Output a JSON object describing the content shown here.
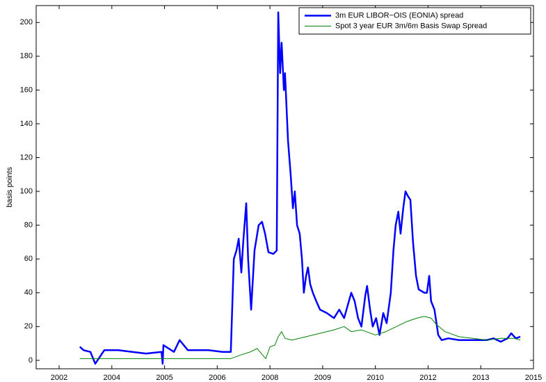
{
  "chart_data": {
    "type": "line",
    "ylabel": "basis points",
    "xlim": [
      2001.79,
      2015.0
    ],
    "xticks": [
      {
        "value": 2002.4,
        "label": "2002"
      },
      {
        "value": 2003.8,
        "label": "2004"
      },
      {
        "value": 2005.2,
        "label": "2005"
      },
      {
        "value": 2006.6,
        "label": "2006"
      },
      {
        "value": 2008.0,
        "label": "2008"
      },
      {
        "value": 2009.4,
        "label": "2009"
      },
      {
        "value": 2010.8,
        "label": "2010"
      },
      {
        "value": 2012.2,
        "label": "2012"
      },
      {
        "value": 2013.6,
        "label": "2013"
      },
      {
        "value": 2015.0,
        "label": "2015"
      }
    ],
    "ylim": [
      -5,
      210
    ],
    "yticks": [
      0,
      20,
      40,
      60,
      80,
      100,
      120,
      140,
      160,
      180,
      200
    ],
    "legend": "upper right",
    "series": [
      {
        "name": "3m EUR LIBOR−OIS (EONIA) spread",
        "color": "#0000ff",
        "line_width": 2.5,
        "x": [
          2002.95,
          2003.05,
          2003.23,
          2003.36,
          2003.6,
          2003.97,
          2004.34,
          2004.71,
          2005.12,
          2005.15,
          2005.17,
          2005.45,
          2005.6,
          2005.82,
          2006.37,
          2006.74,
          2006.96,
          2007.04,
          2007.11,
          2007.17,
          2007.24,
          2007.29,
          2007.37,
          2007.42,
          2007.5,
          2007.59,
          2007.7,
          2007.79,
          2007.87,
          2007.96,
          2008.09,
          2008.18,
          2008.22,
          2008.27,
          2008.31,
          2008.37,
          2008.4,
          2008.48,
          2008.55,
          2008.61,
          2008.66,
          2008.72,
          2008.79,
          2008.85,
          2008.9,
          2008.96,
          2009.01,
          2009.07,
          2009.14,
          2009.23,
          2009.33,
          2009.51,
          2009.7,
          2009.84,
          2009.97,
          2010.16,
          2010.25,
          2010.34,
          2010.43,
          2010.53,
          2010.58,
          2010.66,
          2010.73,
          2010.82,
          2010.91,
          2011.01,
          2011.1,
          2011.21,
          2011.28,
          2011.34,
          2011.41,
          2011.47,
          2011.54,
          2011.6,
          2011.67,
          2011.73,
          2011.8,
          2011.88,
          2011.95,
          2012.1,
          2012.17,
          2012.23,
          2012.28,
          2012.37,
          2012.47,
          2012.56,
          2012.74,
          2013.02,
          2013.39,
          2013.76,
          2013.94,
          2014.13,
          2014.31,
          2014.41,
          2014.53,
          2014.65
        ],
        "values": [
          8,
          6,
          5,
          -2,
          6,
          6,
          5,
          4,
          5,
          -2,
          9,
          5,
          12,
          6,
          6,
          5,
          5,
          60,
          65,
          72,
          52,
          70,
          93,
          60,
          30,
          65,
          80,
          82,
          75,
          64,
          63,
          65,
          206,
          170,
          188,
          160,
          170,
          130,
          110,
          90,
          100,
          80,
          75,
          60,
          40,
          50,
          55,
          45,
          40,
          35,
          30,
          28,
          25,
          30,
          25,
          40,
          35,
          25,
          20,
          38,
          44,
          30,
          20,
          25,
          15,
          28,
          22,
          40,
          65,
          80,
          88,
          75,
          90,
          100,
          97,
          95,
          70,
          50,
          42,
          40,
          40,
          50,
          35,
          30,
          15,
          12,
          13,
          12,
          12,
          12,
          13,
          11,
          13,
          16,
          13,
          14
        ]
      },
      {
        "name": "Spot 3 year EUR 3m/6m Basis Swap Spread",
        "color": "#008000",
        "line_width": 1,
        "x": [
          2002.95,
          2003.42,
          2004.52,
          2005.08,
          2005.63,
          2006.96,
          2007.2,
          2007.48,
          2007.66,
          2007.81,
          2007.89,
          2008.0,
          2008.13,
          2008.22,
          2008.31,
          2008.4,
          2008.59,
          2008.96,
          2009.33,
          2009.7,
          2009.97,
          2010.16,
          2010.43,
          2010.8,
          2011.08,
          2011.36,
          2011.64,
          2011.91,
          2012.1,
          2012.28,
          2012.43,
          2012.65,
          2013.02,
          2013.39,
          2013.76,
          2014.13,
          2014.5,
          2014.65
        ],
        "values": [
          1,
          1,
          1,
          1,
          1,
          1,
          3,
          5,
          7,
          3,
          1,
          8,
          9,
          14,
          17,
          13,
          12,
          14,
          16,
          18,
          20,
          17,
          18,
          15,
          17,
          20,
          23,
          25,
          26,
          25,
          21,
          17,
          14,
          13,
          12,
          13,
          13,
          12
        ]
      }
    ]
  }
}
